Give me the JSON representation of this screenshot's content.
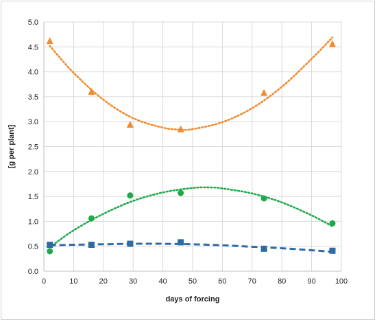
{
  "chart_data": {
    "type": "scatter",
    "title": "",
    "xlabel": "days of forcing",
    "ylabel": "[g per plant]",
    "xlim": [
      0,
      100
    ],
    "ylim": [
      0.0,
      5.0
    ],
    "xticks": [
      "0",
      "10",
      "20",
      "30",
      "40",
      "50",
      "60",
      "70",
      "80",
      "90",
      "100"
    ],
    "yticks": [
      "0.0",
      "0.5",
      "1.0",
      "1.5",
      "2.0",
      "2.5",
      "3.0",
      "3.5",
      "4.0",
      "4.5",
      "5.0"
    ],
    "grid": true,
    "legend": "none",
    "series": [
      {
        "marker": "triangle",
        "color": "#f28a2e",
        "trendline": "dotted",
        "x": [
          2,
          16,
          29,
          46,
          74,
          97
        ],
        "y": [
          4.62,
          3.6,
          2.94,
          2.85,
          3.58,
          4.56
        ],
        "trend_x": [
          2,
          10,
          20,
          30,
          40,
          46,
          50,
          60,
          70,
          80,
          90,
          97
        ],
        "trend_y": [
          4.52,
          3.98,
          3.44,
          3.07,
          2.88,
          2.84,
          2.85,
          2.99,
          3.27,
          3.7,
          4.26,
          4.69
        ]
      },
      {
        "marker": "circle",
        "color": "#1faa4a",
        "trendline": "dotted",
        "x": [
          2,
          16,
          29,
          46,
          74,
          97
        ],
        "y": [
          0.4,
          1.06,
          1.52,
          1.57,
          1.46,
          0.96
        ],
        "trend_x": [
          2,
          10,
          20,
          30,
          40,
          50,
          56,
          60,
          70,
          80,
          90,
          97
        ],
        "trend_y": [
          0.48,
          0.82,
          1.15,
          1.41,
          1.58,
          1.67,
          1.68,
          1.66,
          1.56,
          1.38,
          1.12,
          0.9
        ]
      },
      {
        "marker": "square",
        "color": "#2e6aa6",
        "trendline": "dashed",
        "x": [
          2,
          16,
          29,
          46,
          74,
          97
        ],
        "y": [
          0.53,
          0.53,
          0.55,
          0.58,
          0.45,
          0.41
        ],
        "trend_x": [
          2,
          10,
          20,
          30,
          40,
          50,
          60,
          70,
          80,
          90,
          97
        ],
        "trend_y": [
          0.52,
          0.53,
          0.54,
          0.55,
          0.55,
          0.54,
          0.52,
          0.49,
          0.46,
          0.42,
          0.39
        ]
      }
    ]
  }
}
